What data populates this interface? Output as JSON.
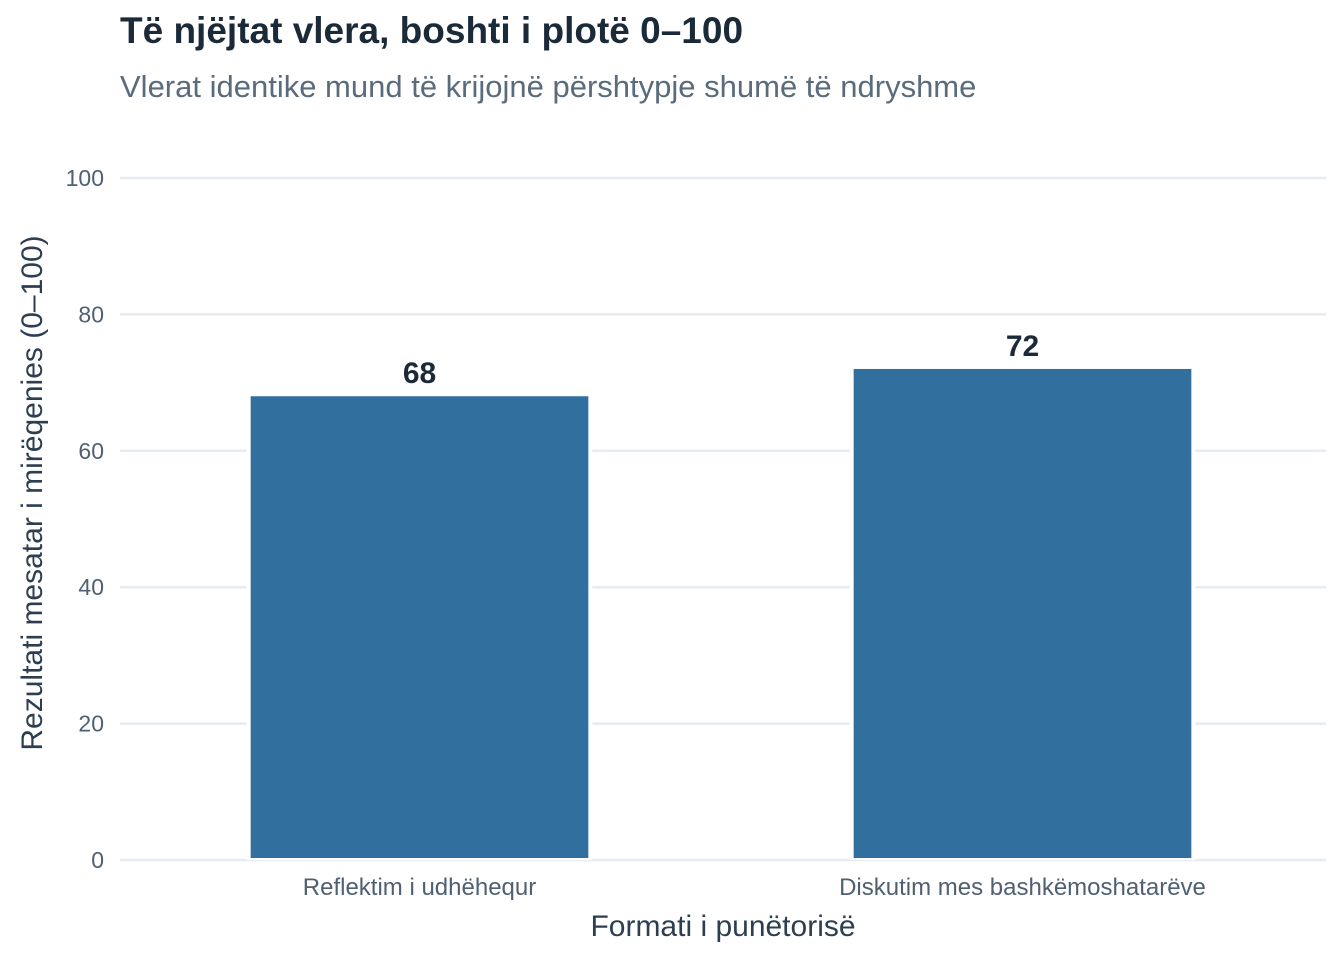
{
  "chart_data": {
    "type": "bar",
    "title": "Të njëjtat vlera, boshti i plotë 0–100",
    "subtitle": "Vlerat identike mund të krijojnë përshtypje shumë të ndryshme",
    "xlabel": "Formati i punëtorisë",
    "ylabel": "Rezultati mesatar i mirëqenies (0–100)",
    "categories": [
      "Reflektim i udhëhequr",
      "Diskutim mes bashkëmoshatarëve"
    ],
    "values": [
      68,
      72
    ],
    "data_labels": [
      "68",
      "72"
    ],
    "ylim": [
      0,
      100
    ],
    "yticks": [
      0,
      20,
      40,
      60,
      80,
      100
    ],
    "grid": true,
    "legend": "none",
    "bar_color": "#306f9e",
    "grid_color": "#e6ecf1"
  }
}
